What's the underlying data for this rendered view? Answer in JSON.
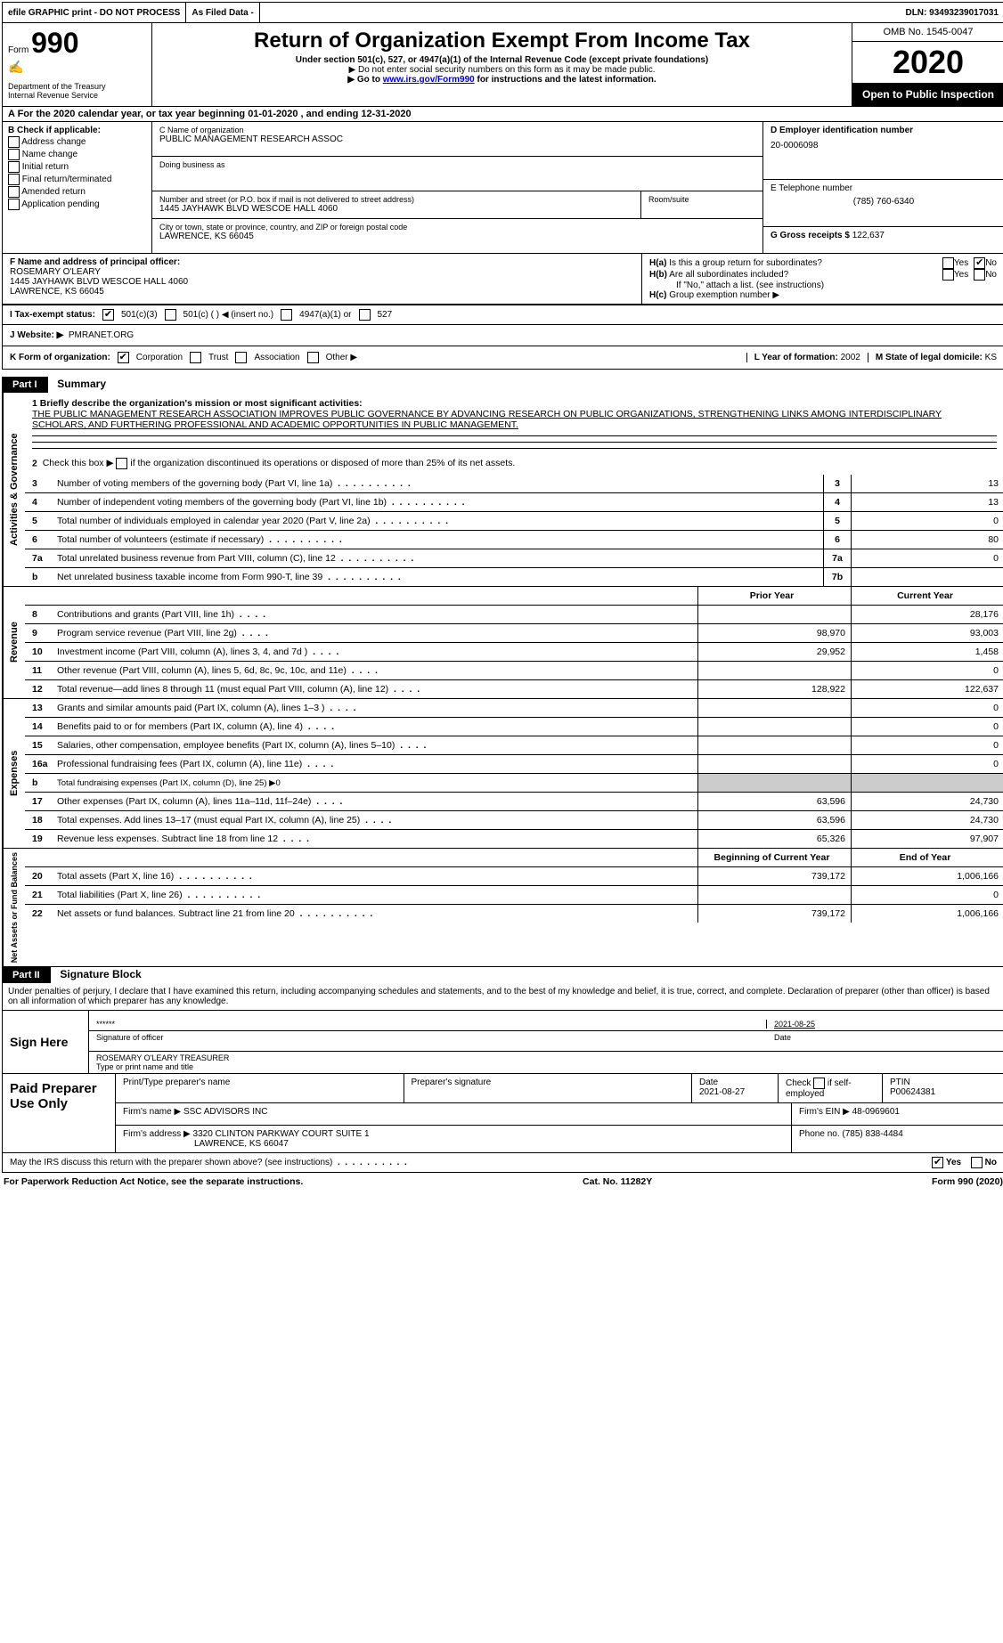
{
  "topbar": {
    "efile": "efile GRAPHIC print - DO NOT PROCESS",
    "asfiled": "As Filed Data -",
    "dln": "DLN: 93493239017031"
  },
  "header": {
    "form_prefix": "Form",
    "form_num": "990",
    "dept": "Department of the Treasury\nInternal Revenue Service",
    "title": "Return of Organization Exempt From Income Tax",
    "sub": "Under section 501(c), 527, or 4947(a)(1) of the Internal Revenue Code (except private foundations)",
    "note1": "▶ Do not enter social security numbers on this form as it may be made public.",
    "note2_a": "▶ Go to ",
    "note2_link": "www.irs.gov/Form990",
    "note2_b": " for instructions and the latest information.",
    "omb": "OMB No. 1545-0047",
    "year": "2020",
    "open": "Open to Public Inspection"
  },
  "row_a": "A  For the 2020 calendar year, or tax year beginning 01-01-2020   , and ending 12-31-2020",
  "sec_b": {
    "label": "B Check if applicable:",
    "items": [
      "Address change",
      "Name change",
      "Initial return",
      "Final return/terminated",
      "Amended return",
      "Application pending"
    ]
  },
  "sec_c": {
    "name_label": "C Name of organization",
    "name": "PUBLIC MANAGEMENT RESEARCH ASSOC",
    "dba_label": "Doing business as",
    "addr_label": "Number and street (or P.O. box if mail is not delivered to street address)",
    "addr": "1445 JAYHAWK BLVD WESCOE HALL 4060",
    "room_label": "Room/suite",
    "city_label": "City or town, state or province, country, and ZIP or foreign postal code",
    "city": "LAWRENCE, KS  66045"
  },
  "sec_d": {
    "label": "D Employer identification number",
    "val": "20-0006098"
  },
  "sec_e": {
    "label": "E Telephone number",
    "val": "(785) 760-6340"
  },
  "sec_g": {
    "label": "G Gross receipts $",
    "val": "122,637"
  },
  "sec_f": {
    "label": "F  Name and address of principal officer:",
    "name": "ROSEMARY O'LEARY",
    "addr1": "1445 JAYHAWK BLVD WESCOE HALL 4060",
    "addr2": "LAWRENCE, KS  66045"
  },
  "sec_h": {
    "ha": "H(a)  Is this a group return for subordinates?",
    "hb": "H(b)  Are all subordinates included?",
    "hb_note": "If \"No,\" attach a list. (see instructions)",
    "hc": "H(c)  Group exemption number ▶",
    "yes": "Yes",
    "no": "No"
  },
  "row_i": {
    "label": "I  Tax-exempt status:",
    "o1": "501(c)(3)",
    "o2": "501(c) (   ) ◀ (insert no.)",
    "o3": "4947(a)(1) or",
    "o4": "527"
  },
  "row_j": {
    "label": "J  Website: ▶",
    "val": "PMRANET.ORG"
  },
  "row_k": {
    "label": "K Form of organization:",
    "o1": "Corporation",
    "o2": "Trust",
    "o3": "Association",
    "o4": "Other ▶",
    "l_label": "L Year of formation:",
    "l_val": "2002",
    "m_label": "M State of legal domicile:",
    "m_val": "KS"
  },
  "part1": {
    "header": "Part I",
    "title": "Summary",
    "q1_label": "1  Briefly describe the organization's mission or most significant activities:",
    "q1_text": "THE PUBLIC MANAGEMENT RESEARCH ASSOCIATION IMPROVES PUBLIC GOVERNANCE BY ADVANCING RESEARCH ON PUBLIC ORGANIZATIONS, STRENGTHENING LINKS AMONG INTERDISCIPLINARY SCHOLARS, AND FURTHERING PROFESSIONAL AND ACADEMIC OPPORTUNITIES IN PUBLIC MANAGEMENT.",
    "q2": "Check this box ▶  if the organization discontinued its operations or disposed of more than 25% of its net assets.",
    "vlabel1": "Activities & Governance",
    "vlabel2": "Revenue",
    "vlabel3": "Expenses",
    "vlabel4": "Net Assets or Fund Balances",
    "col_prior": "Prior Year",
    "col_current": "Current Year",
    "col_begin": "Beginning of Current Year",
    "col_end": "End of Year",
    "lines_gov": [
      {
        "n": "3",
        "t": "Number of voting members of the governing body (Part VI, line 1a)",
        "k": "3",
        "v": "13"
      },
      {
        "n": "4",
        "t": "Number of independent voting members of the governing body (Part VI, line 1b)",
        "k": "4",
        "v": "13"
      },
      {
        "n": "5",
        "t": "Total number of individuals employed in calendar year 2020 (Part V, line 2a)",
        "k": "5",
        "v": "0"
      },
      {
        "n": "6",
        "t": "Total number of volunteers (estimate if necessary)",
        "k": "6",
        "v": "80"
      },
      {
        "n": "7a",
        "t": "Total unrelated business revenue from Part VIII, column (C), line 12",
        "k": "7a",
        "v": "0"
      },
      {
        "n": "b",
        "t": "Net unrelated business taxable income from Form 990-T, line 39",
        "k": "7b",
        "v": ""
      }
    ],
    "lines_rev": [
      {
        "n": "8",
        "t": "Contributions and grants (Part VIII, line 1h)",
        "p": "",
        "c": "28,176"
      },
      {
        "n": "9",
        "t": "Program service revenue (Part VIII, line 2g)",
        "p": "98,970",
        "c": "93,003"
      },
      {
        "n": "10",
        "t": "Investment income (Part VIII, column (A), lines 3, 4, and 7d )",
        "p": "29,952",
        "c": "1,458"
      },
      {
        "n": "11",
        "t": "Other revenue (Part VIII, column (A), lines 5, 6d, 8c, 9c, 10c, and 11e)",
        "p": "",
        "c": "0"
      },
      {
        "n": "12",
        "t": "Total revenue—add lines 8 through 11 (must equal Part VIII, column (A), line 12)",
        "p": "128,922",
        "c": "122,637"
      }
    ],
    "lines_exp": [
      {
        "n": "13",
        "t": "Grants and similar amounts paid (Part IX, column (A), lines 1–3 )",
        "p": "",
        "c": "0"
      },
      {
        "n": "14",
        "t": "Benefits paid to or for members (Part IX, column (A), line 4)",
        "p": "",
        "c": "0"
      },
      {
        "n": "15",
        "t": "Salaries, other compensation, employee benefits (Part IX, column (A), lines 5–10)",
        "p": "",
        "c": "0"
      },
      {
        "n": "16a",
        "t": "Professional fundraising fees (Part IX, column (A), line 11e)",
        "p": "",
        "c": "0"
      },
      {
        "n": "b",
        "t": "Total fundraising expenses (Part IX, column (D), line 25) ▶0",
        "p": null,
        "c": null
      },
      {
        "n": "17",
        "t": "Other expenses (Part IX, column (A), lines 11a–11d, 11f–24e)",
        "p": "63,596",
        "c": "24,730"
      },
      {
        "n": "18",
        "t": "Total expenses. Add lines 13–17 (must equal Part IX, column (A), line 25)",
        "p": "63,596",
        "c": "24,730"
      },
      {
        "n": "19",
        "t": "Revenue less expenses. Subtract line 18 from line 12",
        "p": "65,326",
        "c": "97,907"
      }
    ],
    "lines_net": [
      {
        "n": "20",
        "t": "Total assets (Part X, line 16)",
        "p": "739,172",
        "c": "1,006,166"
      },
      {
        "n": "21",
        "t": "Total liabilities (Part X, line 26)",
        "p": "",
        "c": "0"
      },
      {
        "n": "22",
        "t": "Net assets or fund balances. Subtract line 21 from line 20",
        "p": "739,172",
        "c": "1,006,166"
      }
    ]
  },
  "part2": {
    "header": "Part II",
    "title": "Signature Block",
    "decl": "Under penalties of perjury, I declare that I have examined this return, including accompanying schedules and statements, and to the best of my knowledge and belief, it is true, correct, and complete. Declaration of preparer (other than officer) is based on all information of which preparer has any knowledge.",
    "sign_here": "Sign Here",
    "sig_mask": "******",
    "sig_label": "Signature of officer",
    "sig_date": "2021-08-25",
    "date_label": "Date",
    "officer": "ROSEMARY O'LEARY TREASURER",
    "officer_label": "Type or print name and title",
    "paid": "Paid Preparer Use Only",
    "prep_name_label": "Print/Type preparer's name",
    "prep_sig_label": "Preparer's signature",
    "prep_date_label": "Date",
    "prep_date": "2021-08-27",
    "check_label": "Check  if self-employed",
    "ptin_label": "PTIN",
    "ptin": "P00624381",
    "firm_name_label": "Firm's name  ▶",
    "firm_name": "SSC ADVISORS INC",
    "firm_ein_label": "Firm's EIN ▶",
    "firm_ein": "48-0969601",
    "firm_addr_label": "Firm's address ▶",
    "firm_addr": "3320 CLINTON PARKWAY COURT SUITE 1",
    "firm_addr2": "LAWRENCE, KS  66047",
    "phone_label": "Phone no.",
    "phone": "(785) 838-4484",
    "may_irs": "May the IRS discuss this return with the preparer shown above? (see instructions)",
    "yes": "Yes",
    "no": "No"
  },
  "footer": {
    "left": "For Paperwork Reduction Act Notice, see the separate instructions.",
    "mid": "Cat. No. 11282Y",
    "right_a": "Form ",
    "right_b": "990",
    "right_c": " (2020)"
  }
}
